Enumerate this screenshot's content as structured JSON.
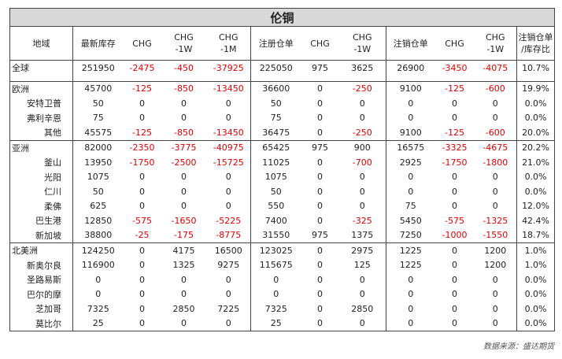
{
  "title": "伦铜",
  "headers": [
    "地域",
    "最新库存",
    "CHG",
    "CHG\n-1W",
    "CHG\n-1M",
    "注册仓单",
    "CHG",
    "CHG\n-1W",
    "注销仓单",
    "CHG",
    "CHG\n-1W",
    "注销仓单\n/库存比"
  ],
  "sections": [
    {
      "rows": [
        {
          "name": "全球",
          "vals": [
            "251950",
            "-2475",
            "-450",
            "-37925",
            "225050",
            "975",
            "3625",
            "26900",
            "-3450",
            "-4075",
            "10.7%"
          ]
        }
      ]
    },
    {
      "rows": [
        {
          "name": "欧洲",
          "vals": [
            "45700",
            "-125",
            "-850",
            "-13450",
            "36600",
            "0",
            "-250",
            "9100",
            "-125",
            "-600",
            "19.9%"
          ]
        },
        {
          "name": "安特卫普",
          "vals": [
            "50",
            "0",
            "0",
            "0",
            "50",
            "0",
            "0",
            "0",
            "0",
            "0",
            "0.0%"
          ]
        },
        {
          "name": "弗利辛恩",
          "vals": [
            "75",
            "0",
            "0",
            "0",
            "75",
            "0",
            "0",
            "0",
            "0",
            "0",
            "0.0%"
          ]
        },
        {
          "name": "其他",
          "vals": [
            "45575",
            "-125",
            "-850",
            "-13450",
            "36475",
            "0",
            "-250",
            "9100",
            "-125",
            "-600",
            "20.0%"
          ]
        }
      ]
    },
    {
      "rows": [
        {
          "name": "亚洲",
          "vals": [
            "82000",
            "-2350",
            "-3775",
            "-40975",
            "65425",
            "975",
            "900",
            "16575",
            "-3325",
            "-4675",
            "20.2%"
          ]
        },
        {
          "name": "釜山",
          "vals": [
            "13950",
            "-1750",
            "-2500",
            "-15725",
            "11025",
            "0",
            "-700",
            "2925",
            "-1750",
            "-1800",
            "21.0%"
          ]
        },
        {
          "name": "光阳",
          "vals": [
            "1075",
            "0",
            "0",
            "0",
            "1075",
            "0",
            "0",
            "0",
            "0",
            "0",
            "0.0%"
          ]
        },
        {
          "name": "仁川",
          "vals": [
            "50",
            "0",
            "0",
            "0",
            "50",
            "0",
            "0",
            "0",
            "0",
            "0",
            "0.0%"
          ]
        },
        {
          "name": "柔佛",
          "vals": [
            "625",
            "0",
            "0",
            "0",
            "550",
            "0",
            "0",
            "75",
            "0",
            "0",
            "12.0%"
          ]
        },
        {
          "name": "巴生港",
          "vals": [
            "12850",
            "-575",
            "-1650",
            "-5225",
            "7400",
            "0",
            "-325",
            "5450",
            "-575",
            "-1325",
            "42.4%"
          ]
        },
        {
          "name": "新加坡",
          "vals": [
            "38800",
            "-25",
            "-175",
            "-8775",
            "31550",
            "975",
            "1375",
            "7250",
            "-1000",
            "-1550",
            "18.7%"
          ]
        }
      ]
    },
    {
      "rows": [
        {
          "name": "北美洲",
          "vals": [
            "124250",
            "0",
            "4175",
            "16500",
            "123025",
            "0",
            "2975",
            "1225",
            "0",
            "1200",
            "1.0%"
          ]
        },
        {
          "name": "新奥尔良",
          "vals": [
            "116900",
            "0",
            "1325",
            "9275",
            "115675",
            "0",
            "125",
            "1225",
            "0",
            "1200",
            "1.0%"
          ]
        },
        {
          "name": "圣路易斯",
          "vals": [
            "0",
            "0",
            "0",
            "0",
            "0",
            "0",
            "0",
            "0",
            "0",
            "0",
            "0.0%"
          ]
        },
        {
          "name": "巴尔的摩",
          "vals": [
            "0",
            "0",
            "0",
            "0",
            "0",
            "0",
            "0",
            "0",
            "0",
            "0",
            "0.0%"
          ]
        },
        {
          "name": "芝加哥",
          "vals": [
            "7325",
            "0",
            "2850",
            "7225",
            "7325",
            "0",
            "2850",
            "0",
            "0",
            "0",
            "0.0%"
          ]
        },
        {
          "name": "莫比尔",
          "vals": [
            "25",
            "0",
            "0",
            "0",
            "25",
            "0",
            "0",
            "0",
            "0",
            "0",
            "0.0%"
          ]
        }
      ]
    }
  ],
  "source": "数据来源：盛达期货",
  "colors": {
    "negative": "#e00000",
    "title_bg": "#d9d9d9",
    "border": "#444444"
  }
}
